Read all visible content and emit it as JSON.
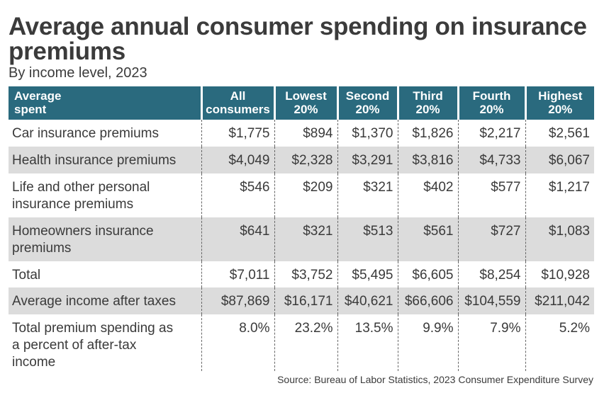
{
  "chart_data": {
    "type": "table",
    "title": "Average annual consumer spending on insurance premiums",
    "subtitle": "By income level, 2023",
    "columns": [
      "Average spent",
      "All consumers",
      "Lowest 20%",
      "Second 20%",
      "Third 20%",
      "Fourth 20%",
      "Highest 20%"
    ],
    "header_color": "#2a6a7e",
    "rows": [
      {
        "label": "Car insurance premiums",
        "values": [
          "$1,775",
          "$894",
          "$1,370",
          "$1,826",
          "$2,217",
          "$2,561"
        ]
      },
      {
        "label": "Health insurance premiums",
        "values": [
          "$4,049",
          "$2,328",
          "$3,291",
          "$3,816",
          "$4,733",
          "$6,067"
        ]
      },
      {
        "label": "Life and other personal insurance premiums",
        "values": [
          "$546",
          "$209",
          "$321",
          "$402",
          "$577",
          "$1,217"
        ]
      },
      {
        "label": "Homeowners insurance premiums",
        "values": [
          "$641",
          "$321",
          "$513",
          "$561",
          "$727",
          "$1,083"
        ]
      },
      {
        "label": "Total",
        "values": [
          "$7,011",
          "$3,752",
          "$5,495",
          "$6,605",
          "$8,254",
          "$10,928"
        ]
      },
      {
        "label": "Average income after taxes",
        "values": [
          "$87,869",
          "$16,171",
          "$40,621",
          "$66,606",
          "$104,559",
          "$211,042"
        ]
      },
      {
        "label": "Total premium spending as a percent of after-tax income",
        "values": [
          "8.0%",
          "23.2%",
          "13.5%",
          "9.9%",
          "7.9%",
          "5.2%"
        ]
      }
    ],
    "source": "Source: Bureau of Labor Statistics, 2023 Consumer Expenditure Survey"
  }
}
